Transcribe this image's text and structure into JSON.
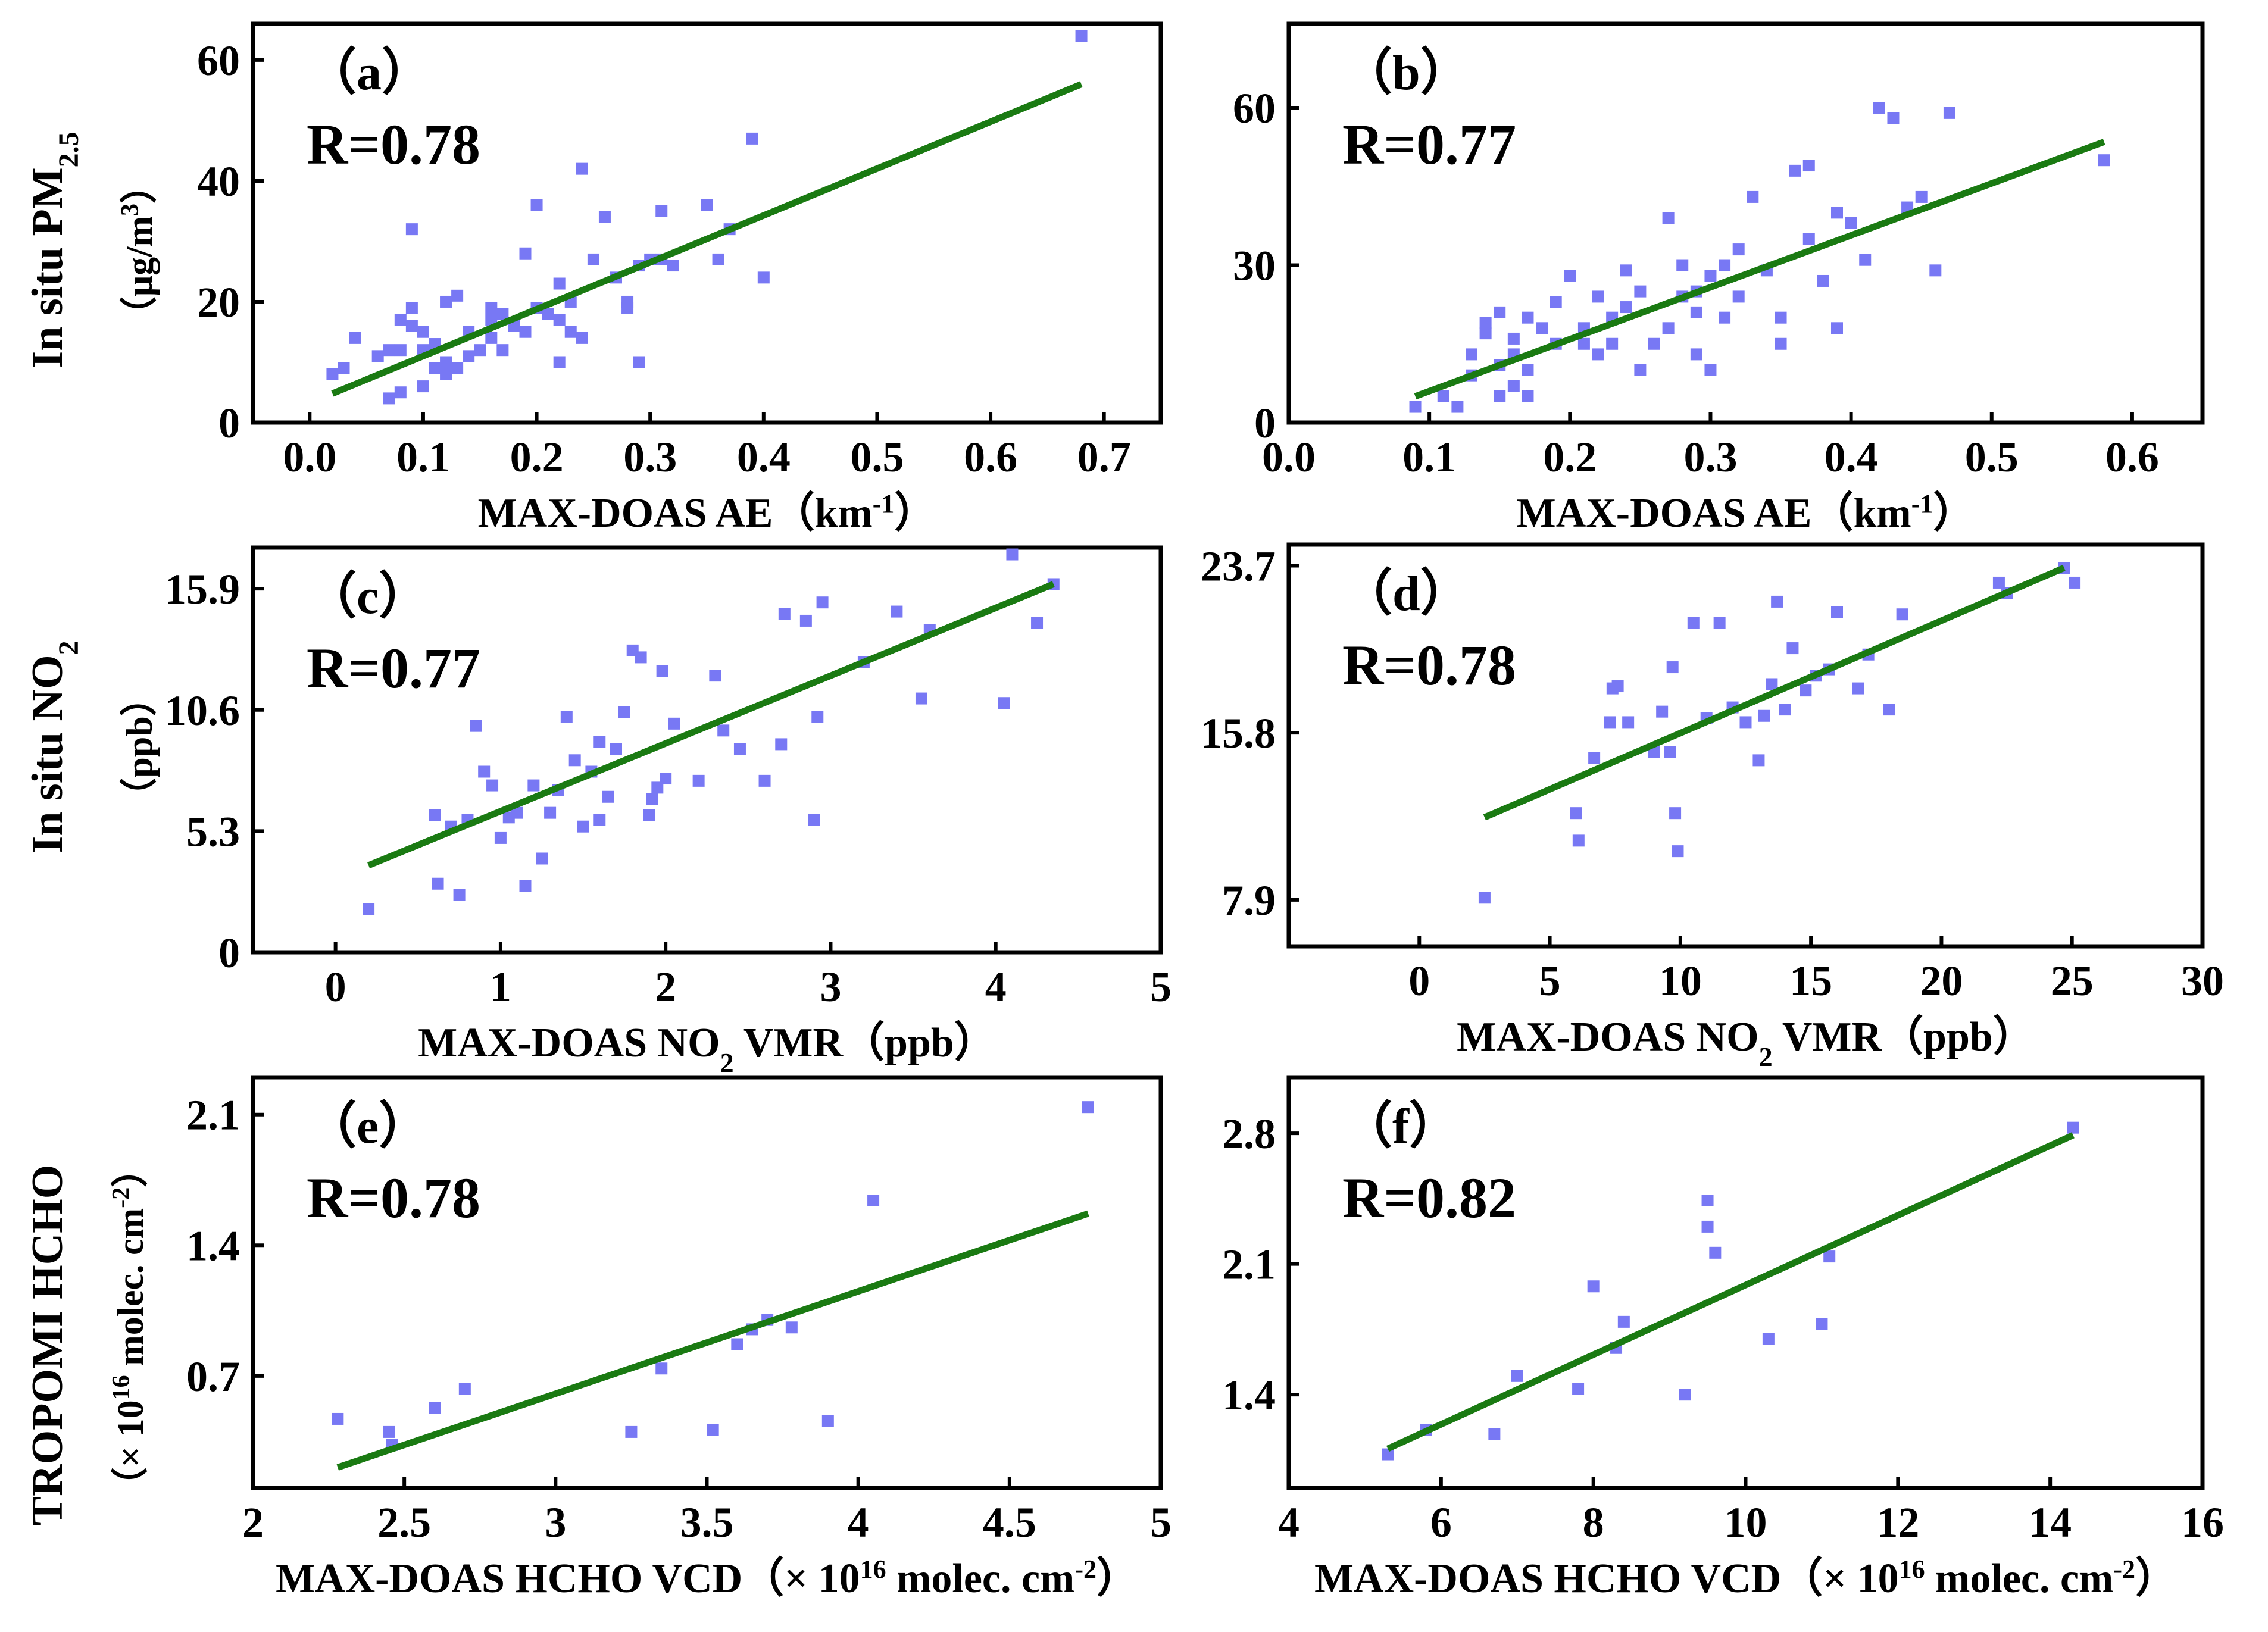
{
  "y_titles": {
    "row1_main": "In situ PM",
    "row1_main_sub": "2.5",
    "row1_unit": "（μg/m",
    "row1_unit_sup": "3",
    "row1_unit_close": "）",
    "row2_main": "In situ NO",
    "row2_main_sub": "2",
    "row2_unit": "（ppb）",
    "row3_main": "TROPOMI HCHO",
    "row3_unit": "（× 10",
    "row3_unit_sup": "16",
    "row3_unit_mid": " molec. cm",
    "row3_unit_sup2": "-2",
    "row3_unit_close": "）"
  },
  "colors": {
    "points": "#7878f4",
    "fit_line": "#1a7a12",
    "frame": "#000000"
  },
  "chart_data": [
    {
      "id": "a",
      "type": "scatter",
      "tag": "（a）",
      "r_label": "R=0.78",
      "xlabel": "MAX-DOAS AE（km",
      "xlabel_sup": "-1",
      "xlabel_close": "）",
      "xlim": [
        -0.05,
        0.75
      ],
      "ylim": [
        0,
        66
      ],
      "xticks": [
        0.0,
        0.1,
        0.2,
        0.3,
        0.4,
        0.5,
        0.6,
        0.7
      ],
      "xtick_labels": [
        "0.0",
        "0.1",
        "0.2",
        "0.3",
        "0.4",
        "0.5",
        "0.6",
        "0.7"
      ],
      "yticks": [
        0,
        20,
        40,
        60
      ],
      "ytick_labels": [
        "0",
        "20",
        "40",
        "60"
      ],
      "fit_line": [
        [
          0.02,
          4.8
        ],
        [
          0.68,
          56
        ]
      ],
      "points": [
        [
          0.02,
          8
        ],
        [
          0.03,
          9
        ],
        [
          0.04,
          14
        ],
        [
          0.06,
          11
        ],
        [
          0.07,
          4
        ],
        [
          0.07,
          12
        ],
        [
          0.08,
          5
        ],
        [
          0.08,
          12
        ],
        [
          0.08,
          17
        ],
        [
          0.09,
          19
        ],
        [
          0.09,
          16
        ],
        [
          0.09,
          32
        ],
        [
          0.1,
          6
        ],
        [
          0.1,
          15
        ],
        [
          0.1,
          12
        ],
        [
          0.11,
          9
        ],
        [
          0.11,
          13
        ],
        [
          0.12,
          8
        ],
        [
          0.12,
          10
        ],
        [
          0.12,
          20
        ],
        [
          0.13,
          9
        ],
        [
          0.13,
          21
        ],
        [
          0.14,
          11
        ],
        [
          0.14,
          15
        ],
        [
          0.15,
          12
        ],
        [
          0.16,
          17
        ],
        [
          0.16,
          19
        ],
        [
          0.16,
          14
        ],
        [
          0.17,
          18
        ],
        [
          0.17,
          12
        ],
        [
          0.18,
          16
        ],
        [
          0.19,
          28
        ],
        [
          0.19,
          15
        ],
        [
          0.2,
          19
        ],
        [
          0.2,
          36
        ],
        [
          0.21,
          18
        ],
        [
          0.22,
          17
        ],
        [
          0.22,
          23
        ],
        [
          0.22,
          10
        ],
        [
          0.23,
          15
        ],
        [
          0.23,
          20
        ],
        [
          0.24,
          14
        ],
        [
          0.24,
          42
        ],
        [
          0.25,
          27
        ],
        [
          0.26,
          34
        ],
        [
          0.27,
          24
        ],
        [
          0.28,
          20
        ],
        [
          0.28,
          19
        ],
        [
          0.29,
          26
        ],
        [
          0.29,
          10
        ],
        [
          0.3,
          27
        ],
        [
          0.31,
          35
        ],
        [
          0.31,
          27
        ],
        [
          0.32,
          26
        ],
        [
          0.35,
          36
        ],
        [
          0.36,
          27
        ],
        [
          0.37,
          32
        ],
        [
          0.39,
          47
        ],
        [
          0.4,
          24
        ],
        [
          0.68,
          64
        ]
      ]
    },
    {
      "id": "b",
      "type": "scatter",
      "tag": "（b）",
      "r_label": "R=0.77",
      "xlabel": "MAX-DOAS AE（km",
      "xlabel_sup": "-1",
      "xlabel_close": "）",
      "xlim": [
        0.0,
        0.65
      ],
      "ylim": [
        0,
        76
      ],
      "xticks": [
        0.0,
        0.1,
        0.2,
        0.3,
        0.4,
        0.5,
        0.6
      ],
      "xtick_labels": [
        "0.0",
        "0.1",
        "0.2",
        "0.3",
        "0.4",
        "0.5",
        "0.6"
      ],
      "yticks": [
        0,
        30,
        60
      ],
      "ytick_labels": [
        "0",
        "30",
        "60"
      ],
      "fit_line": [
        [
          0.09,
          5
        ],
        [
          0.58,
          53.5
        ]
      ],
      "points": [
        [
          0.09,
          3
        ],
        [
          0.11,
          5
        ],
        [
          0.12,
          3
        ],
        [
          0.13,
          9
        ],
        [
          0.13,
          13
        ],
        [
          0.14,
          17
        ],
        [
          0.14,
          19
        ],
        [
          0.15,
          5
        ],
        [
          0.15,
          11
        ],
        [
          0.15,
          21
        ],
        [
          0.16,
          7
        ],
        [
          0.16,
          13
        ],
        [
          0.16,
          16
        ],
        [
          0.17,
          10
        ],
        [
          0.17,
          5
        ],
        [
          0.17,
          20
        ],
        [
          0.18,
          18
        ],
        [
          0.19,
          15
        ],
        [
          0.19,
          23
        ],
        [
          0.2,
          28
        ],
        [
          0.21,
          15
        ],
        [
          0.21,
          18
        ],
        [
          0.22,
          13
        ],
        [
          0.22,
          24
        ],
        [
          0.23,
          15
        ],
        [
          0.23,
          20
        ],
        [
          0.24,
          29
        ],
        [
          0.24,
          22
        ],
        [
          0.25,
          10
        ],
        [
          0.25,
          25
        ],
        [
          0.26,
          15
        ],
        [
          0.27,
          18
        ],
        [
          0.27,
          39
        ],
        [
          0.28,
          24
        ],
        [
          0.28,
          30
        ],
        [
          0.29,
          13
        ],
        [
          0.29,
          21
        ],
        [
          0.29,
          25
        ],
        [
          0.3,
          10
        ],
        [
          0.3,
          28
        ],
        [
          0.31,
          20
        ],
        [
          0.31,
          30
        ],
        [
          0.32,
          33
        ],
        [
          0.32,
          24
        ],
        [
          0.33,
          43
        ],
        [
          0.34,
          29
        ],
        [
          0.35,
          20
        ],
        [
          0.35,
          15
        ],
        [
          0.36,
          48
        ],
        [
          0.37,
          49
        ],
        [
          0.37,
          35
        ],
        [
          0.38,
          27
        ],
        [
          0.39,
          18
        ],
        [
          0.39,
          40
        ],
        [
          0.4,
          38
        ],
        [
          0.41,
          31
        ],
        [
          0.42,
          60
        ],
        [
          0.43,
          58
        ],
        [
          0.44,
          41
        ],
        [
          0.45,
          43
        ],
        [
          0.46,
          29
        ],
        [
          0.47,
          59
        ],
        [
          0.58,
          50
        ]
      ]
    },
    {
      "id": "c",
      "type": "scatter",
      "tag": "（c）",
      "r_label": "R=0.77",
      "xlabel": "MAX-DOAS NO",
      "xlabel_sub": "2",
      "xlabel_rest": " VMR（ppb）",
      "xlim": [
        -0.5,
        5.0
      ],
      "ylim": [
        0,
        17.7
      ],
      "xticks": [
        0,
        1,
        2,
        3,
        4,
        5
      ],
      "xtick_labels": [
        "0",
        "1",
        "2",
        "3",
        "4",
        "5"
      ],
      "yticks": [
        0,
        5.3,
        10.6,
        15.9
      ],
      "ytick_labels": [
        "0",
        "5.3",
        "10.6",
        "15.9"
      ],
      "fit_line": [
        [
          0.2,
          3.8
        ],
        [
          4.35,
          16.1
        ]
      ],
      "points": [
        [
          0.2,
          1.9
        ],
        [
          0.6,
          6.0
        ],
        [
          0.62,
          3.0
        ],
        [
          0.7,
          5.5
        ],
        [
          0.75,
          2.5
        ],
        [
          0.8,
          5.8
        ],
        [
          0.85,
          9.9
        ],
        [
          0.9,
          7.9
        ],
        [
          0.95,
          7.3
        ],
        [
          1.0,
          5.0
        ],
        [
          1.05,
          5.9
        ],
        [
          1.1,
          6.1
        ],
        [
          1.15,
          2.9
        ],
        [
          1.2,
          7.3
        ],
        [
          1.25,
          4.1
        ],
        [
          1.3,
          6.1
        ],
        [
          1.35,
          7.1
        ],
        [
          1.4,
          10.3
        ],
        [
          1.45,
          8.4
        ],
        [
          1.5,
          5.5
        ],
        [
          1.55,
          7.9
        ],
        [
          1.6,
          5.8
        ],
        [
          1.6,
          9.2
        ],
        [
          1.65,
          6.8
        ],
        [
          1.7,
          8.9
        ],
        [
          1.75,
          10.5
        ],
        [
          1.8,
          13.2
        ],
        [
          1.85,
          12.9
        ],
        [
          1.9,
          6.0
        ],
        [
          1.92,
          6.7
        ],
        [
          1.95,
          7.2
        ],
        [
          1.98,
          12.3
        ],
        [
          2.0,
          7.6
        ],
        [
          2.05,
          10.0
        ],
        [
          2.2,
          7.5
        ],
        [
          2.3,
          12.1
        ],
        [
          2.35,
          9.7
        ],
        [
          2.45,
          8.9
        ],
        [
          2.6,
          7.5
        ],
        [
          2.7,
          9.1
        ],
        [
          2.72,
          14.8
        ],
        [
          2.85,
          14.5
        ],
        [
          2.9,
          5.8
        ],
        [
          2.92,
          10.3
        ],
        [
          2.95,
          15.3
        ],
        [
          3.2,
          12.7
        ],
        [
          3.4,
          14.9
        ],
        [
          3.55,
          11.1
        ],
        [
          3.6,
          14.1
        ],
        [
          4.05,
          10.9
        ],
        [
          4.1,
          17.4
        ],
        [
          4.25,
          14.4
        ],
        [
          4.35,
          16.1
        ]
      ]
    },
    {
      "id": "d",
      "type": "scatter",
      "tag": "（d）",
      "r_label": "R=0.78",
      "xlabel": "MAX-DOAS NO",
      "xlabel_sub": "2",
      "xlabel_rest": " VMR（ppb）",
      "xlim": [
        -5,
        30
      ],
      "ylim": [
        5.7,
        24.7
      ],
      "xticks": [
        0,
        5,
        10,
        15,
        20,
        25,
        30
      ],
      "xtick_labels": [
        "0",
        "5",
        "10",
        "15",
        "20",
        "25",
        "30"
      ],
      "yticks": [
        7.9,
        15.8,
        23.7
      ],
      "ytick_labels": [
        "7.9",
        "15.8",
        "23.7"
      ],
      "fit_line": [
        [
          2.5,
          11.8
        ],
        [
          24.7,
          23.6
        ]
      ],
      "points": [
        [
          2.5,
          8.0
        ],
        [
          6.0,
          12.0
        ],
        [
          6.1,
          10.7
        ],
        [
          6.7,
          14.6
        ],
        [
          7.3,
          16.3
        ],
        [
          7.4,
          17.9
        ],
        [
          7.6,
          18.0
        ],
        [
          8.0,
          16.3
        ],
        [
          9.0,
          14.9
        ],
        [
          9.3,
          16.8
        ],
        [
          9.6,
          14.9
        ],
        [
          9.8,
          12.0
        ],
        [
          9.9,
          10.2
        ],
        [
          9.7,
          18.9
        ],
        [
          10.5,
          21.0
        ],
        [
          11.0,
          16.5
        ],
        [
          11.5,
          21.0
        ],
        [
          12.0,
          17.0
        ],
        [
          12.5,
          16.3
        ],
        [
          13.0,
          14.5
        ],
        [
          13.2,
          16.6
        ],
        [
          13.5,
          18.1
        ],
        [
          13.7,
          22.0
        ],
        [
          14.0,
          16.9
        ],
        [
          14.3,
          19.8
        ],
        [
          14.8,
          17.8
        ],
        [
          15.2,
          18.5
        ],
        [
          15.7,
          18.8
        ],
        [
          16.0,
          21.5
        ],
        [
          16.8,
          17.9
        ],
        [
          17.2,
          19.5
        ],
        [
          18.0,
          16.9
        ],
        [
          18.5,
          21.4
        ],
        [
          22.2,
          22.9
        ],
        [
          22.5,
          22.4
        ],
        [
          24.7,
          23.6
        ],
        [
          25.1,
          22.9
        ]
      ]
    },
    {
      "id": "e",
      "type": "scatter",
      "tag": "（e）",
      "r_label": "R=0.78",
      "xlabel": "MAX-DOAS HCHO VCD（× 10",
      "xlabel_sup": "16",
      "xlabel_rest": " molec. cm",
      "xlabel_sup2": "-2",
      "xlabel_close": "）",
      "xlim": [
        2.0,
        5.0
      ],
      "ylim": [
        0.1,
        2.3
      ],
      "xticks": [
        2.0,
        2.5,
        3.0,
        3.5,
        4.0,
        4.5,
        5.0
      ],
      "xtick_labels": [
        "2",
        "2.5",
        "3",
        "3.5",
        "4",
        "4.5",
        "5"
      ],
      "yticks": [
        0.7,
        1.4,
        2.1
      ],
      "ytick_labels": [
        "0.7",
        "1.4",
        "2.1"
      ],
      "fit_line": [
        [
          2.28,
          0.21
        ],
        [
          4.76,
          1.57
        ]
      ],
      "points": [
        [
          2.28,
          0.47
        ],
        [
          2.45,
          0.4
        ],
        [
          2.46,
          0.33
        ],
        [
          2.6,
          0.53
        ],
        [
          2.7,
          0.63
        ],
        [
          3.25,
          0.4
        ],
        [
          3.35,
          0.74
        ],
        [
          3.52,
          0.41
        ],
        [
          3.6,
          0.87
        ],
        [
          3.65,
          0.95
        ],
        [
          3.7,
          1.0
        ],
        [
          3.78,
          0.96
        ],
        [
          3.9,
          0.46
        ],
        [
          4.05,
          1.64
        ],
        [
          4.76,
          2.14
        ]
      ]
    },
    {
      "id": "f",
      "type": "scatter",
      "tag": "（f）",
      "r_label": "R=0.82",
      "xlabel": "MAX-DOAS HCHO VCD（× 10",
      "xlabel_sup": "16",
      "xlabel_rest": " molec. cm",
      "xlabel_sup2": "-2",
      "xlabel_close": "）",
      "xlim": [
        4,
        16
      ],
      "ylim": [
        0.9,
        3.1
      ],
      "xticks": [
        4,
        6,
        8,
        10,
        12,
        14,
        16
      ],
      "xtick_labels": [
        "4",
        "6",
        "8",
        "10",
        "12",
        "14",
        "16"
      ],
      "yticks": [
        1.4,
        2.1,
        2.8
      ],
      "ytick_labels": [
        "1.4",
        "2.1",
        "2.8"
      ],
      "fit_line": [
        [
          5.3,
          1.11
        ],
        [
          14.3,
          2.79
        ]
      ],
      "points": [
        [
          5.3,
          1.08
        ],
        [
          5.8,
          1.21
        ],
        [
          6.7,
          1.19
        ],
        [
          7.0,
          1.5
        ],
        [
          7.8,
          1.43
        ],
        [
          8.0,
          1.98
        ],
        [
          8.3,
          1.65
        ],
        [
          8.4,
          1.79
        ],
        [
          9.2,
          1.4
        ],
        [
          9.5,
          2.44
        ],
        [
          9.5,
          2.3
        ],
        [
          9.6,
          2.16
        ],
        [
          10.3,
          1.7
        ],
        [
          11.0,
          1.78
        ],
        [
          11.1,
          2.14
        ],
        [
          14.3,
          2.83
        ]
      ]
    }
  ]
}
